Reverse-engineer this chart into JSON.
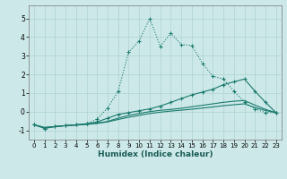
{
  "xlabel": "Humidex (Indice chaleur)",
  "bg_color": "#cce8e8",
  "line_color": "#1a7a6e",
  "grid_color": "#afd4d0",
  "xlim": [
    -0.5,
    23.5
  ],
  "ylim": [
    -1.5,
    5.7
  ],
  "yticks": [
    -1,
    0,
    1,
    2,
    3,
    4,
    5
  ],
  "xticks": [
    0,
    1,
    2,
    3,
    4,
    5,
    6,
    7,
    8,
    9,
    10,
    11,
    12,
    13,
    14,
    15,
    16,
    17,
    18,
    19,
    20,
    21,
    22,
    23
  ],
  "line1_x": [
    0,
    1,
    2,
    3,
    4,
    5,
    6,
    7,
    8,
    9,
    10,
    11,
    12,
    13,
    14,
    15,
    16,
    17,
    18,
    19,
    20,
    21,
    22,
    23
  ],
  "line1_y": [
    -0.7,
    -0.9,
    -0.8,
    -0.75,
    -0.7,
    -0.65,
    -0.4,
    0.2,
    1.1,
    3.2,
    3.8,
    5.0,
    3.5,
    4.2,
    3.6,
    3.55,
    2.6,
    1.9,
    1.75,
    1.1,
    0.5,
    0.15,
    -0.05,
    -0.05
  ],
  "line2_x": [
    0,
    1,
    2,
    3,
    4,
    5,
    6,
    7,
    8,
    9,
    10,
    11,
    12,
    13,
    14,
    15,
    16,
    17,
    18,
    19,
    20,
    21,
    22,
    23
  ],
  "line2_y": [
    -0.7,
    -0.9,
    -0.8,
    -0.75,
    -0.7,
    -0.65,
    -0.55,
    -0.35,
    -0.15,
    -0.05,
    0.05,
    0.15,
    0.3,
    0.5,
    0.7,
    0.9,
    1.05,
    1.2,
    1.45,
    1.6,
    1.75,
    1.1,
    0.5,
    -0.05
  ],
  "line3_x": [
    0,
    1,
    2,
    3,
    4,
    5,
    6,
    7,
    8,
    9,
    10,
    11,
    12,
    13,
    14,
    15,
    16,
    17,
    18,
    19,
    20,
    21,
    22,
    23
  ],
  "line3_y": [
    -0.7,
    -0.85,
    -0.8,
    -0.75,
    -0.72,
    -0.68,
    -0.62,
    -0.52,
    -0.35,
    -0.2,
    -0.1,
    0.0,
    0.07,
    0.12,
    0.18,
    0.26,
    0.34,
    0.42,
    0.5,
    0.56,
    0.6,
    0.35,
    0.12,
    -0.05
  ],
  "line4_x": [
    0,
    1,
    2,
    3,
    4,
    5,
    6,
    7,
    8,
    9,
    10,
    11,
    12,
    13,
    14,
    15,
    16,
    17,
    18,
    19,
    20,
    21,
    22,
    23
  ],
  "line4_y": [
    -0.7,
    -0.85,
    -0.8,
    -0.75,
    -0.72,
    -0.68,
    -0.63,
    -0.55,
    -0.42,
    -0.3,
    -0.2,
    -0.1,
    -0.03,
    0.03,
    0.08,
    0.13,
    0.19,
    0.25,
    0.32,
    0.37,
    0.42,
    0.22,
    0.06,
    -0.05
  ]
}
